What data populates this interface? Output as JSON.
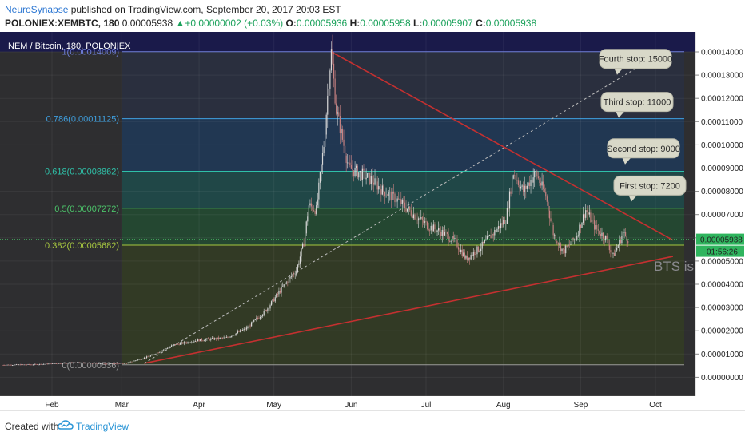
{
  "header": {
    "author": "NeuroSynapse",
    "published": "published on TradingView.com, September 20, 2017 20:03 EST",
    "symbol": "POLONIEX:XEMBTC, 180",
    "last": "0.00005938",
    "change": "+0.00000002 (+0.03%)",
    "o_label": "O:",
    "o_value": "0.00005936",
    "h_label": "H:",
    "h_value": "0.00005958",
    "l_label": "L:",
    "l_value": "0.00005907",
    "c_label": "C:",
    "c_value": "0.00005938"
  },
  "footer": {
    "created_with": "Created with",
    "brand": "TradingView",
    "brand_icon": "tradingview-cloud-icon"
  },
  "chart_data": {
    "type": "candlestick",
    "legend": "NEM / Bitcoin, 180, POLONIEX",
    "x_ticks": [
      "Feb",
      "Mar",
      "Apr",
      "May",
      "Jun",
      "Jul",
      "Aug",
      "Sep",
      "Oct"
    ],
    "y_ticks": [
      "0.00014000",
      "0.00013000",
      "0.00012000",
      "0.00011000",
      "0.00010000",
      "0.00009000",
      "0.00008000",
      "0.00007000",
      "0.00006000",
      "0.00005000",
      "0.00004000",
      "0.00003000",
      "0.00002000",
      "0.00001000",
      "0.00000000"
    ],
    "y_range": [
      -1e-06,
      0.000145
    ],
    "last_price_label": "0.00005938",
    "countdown": "01:56:26",
    "watermark": "BTS is",
    "fib_levels": [
      {
        "label": "1(0.00014009)",
        "value": 0.00014009,
        "color": "#6f7fd8"
      },
      {
        "label": "0.786(0.00011125)",
        "value": 0.00011125,
        "color": "#3fa0e0"
      },
      {
        "label": "0.618(0.00008862)",
        "value": 8.862e-05,
        "color": "#2fc0a8"
      },
      {
        "label": "0.5(0.00007272)",
        "value": 7.272e-05,
        "color": "#4cc36a"
      },
      {
        "label": "0.382(0.00005682)",
        "value": 5.682e-05,
        "color": "#a8c840"
      },
      {
        "label": "0(0.00000536)",
        "value": 5.36e-06,
        "color": "#9a9a9a"
      }
    ],
    "callouts": [
      {
        "text": "Fourth stop: 15000",
        "value": 0.000137
      },
      {
        "text": "Third stop: 11000",
        "value": 0.0001185
      },
      {
        "text": "Second stop: 9000",
        "value": 9.85e-05
      },
      {
        "text": "First stop: 7200",
        "value": 8.25e-05
      }
    ],
    "series": [
      {
        "date": "2017-01-12",
        "close": 5.3e-06
      },
      {
        "date": "2017-01-25",
        "close": 5.5e-06
      },
      {
        "date": "2017-02-10",
        "close": 6.3e-06
      },
      {
        "date": "2017-02-25",
        "close": 5.8e-06
      },
      {
        "date": "2017-03-03",
        "close": 6.1e-06
      },
      {
        "date": "2017-03-12",
        "close": 9e-06
      },
      {
        "date": "2017-03-22",
        "close": 1.4e-05
      },
      {
        "date": "2017-04-01",
        "close": 1.6e-05
      },
      {
        "date": "2017-04-12",
        "close": 1.7e-05
      },
      {
        "date": "2017-04-20",
        "close": 2.1e-05
      },
      {
        "date": "2017-04-28",
        "close": 2.9e-05
      },
      {
        "date": "2017-05-04",
        "close": 3.8e-05
      },
      {
        "date": "2017-05-10",
        "close": 4.6e-05
      },
      {
        "date": "2017-05-13",
        "close": 5.8e-05
      },
      {
        "date": "2017-05-15",
        "close": 7.4e-05
      },
      {
        "date": "2017-05-18",
        "close": 7.2e-05
      },
      {
        "date": "2017-05-21",
        "close": 0.0001
      },
      {
        "date": "2017-05-23",
        "close": 0.000128
      },
      {
        "date": "2017-05-24",
        "close": 0.00014
      },
      {
        "date": "2017-05-26",
        "close": 0.000115
      },
      {
        "date": "2017-05-28",
        "close": 0.000105
      },
      {
        "date": "2017-05-31",
        "close": 9e-05
      },
      {
        "date": "2017-06-04",
        "close": 8.8e-05
      },
      {
        "date": "2017-06-09",
        "close": 8.5e-05
      },
      {
        "date": "2017-06-14",
        "close": 8e-05
      },
      {
        "date": "2017-06-20",
        "close": 7.6e-05
      },
      {
        "date": "2017-06-26",
        "close": 7e-05
      },
      {
        "date": "2017-07-02",
        "close": 6.5e-05
      },
      {
        "date": "2017-07-08",
        "close": 6.2e-05
      },
      {
        "date": "2017-07-13",
        "close": 5.8e-05
      },
      {
        "date": "2017-07-17",
        "close": 5.1e-05
      },
      {
        "date": "2017-07-23",
        "close": 5.6e-05
      },
      {
        "date": "2017-07-28",
        "close": 6.2e-05
      },
      {
        "date": "2017-08-02",
        "close": 6.8e-05
      },
      {
        "date": "2017-08-05",
        "close": 8.8e-05
      },
      {
        "date": "2017-08-09",
        "close": 8e-05
      },
      {
        "date": "2017-08-14",
        "close": 8.8e-05
      },
      {
        "date": "2017-08-18",
        "close": 7.8e-05
      },
      {
        "date": "2017-08-21",
        "close": 6.2e-05
      },
      {
        "date": "2017-08-25",
        "close": 5.4e-05
      },
      {
        "date": "2017-08-30",
        "close": 6e-05
      },
      {
        "date": "2017-09-03",
        "close": 7.2e-05
      },
      {
        "date": "2017-09-07",
        "close": 6.4e-05
      },
      {
        "date": "2017-09-11",
        "close": 6e-05
      },
      {
        "date": "2017-09-14",
        "close": 5.2e-05
      },
      {
        "date": "2017-09-16",
        "close": 5.7e-05
      },
      {
        "date": "2017-09-18",
        "close": 6.2e-05
      },
      {
        "date": "2017-09-20",
        "close": 5.94e-05
      }
    ],
    "trendlines": [
      {
        "name": "upper",
        "color": "#c43030",
        "from": {
          "date": "2017-05-24",
          "value": 0.00014
        },
        "to": {
          "date": "2017-10-08",
          "value": 5.9e-05
        }
      },
      {
        "name": "lower",
        "color": "#c43030",
        "from": {
          "date": "2017-03-10",
          "value": 6e-06
        },
        "to": {
          "date": "2017-10-08",
          "value": 5.2e-05
        }
      },
      {
        "name": "projection",
        "color": "#bbbbbb",
        "from": {
          "date": "2017-03-10",
          "value": 6e-06
        },
        "to": {
          "date": "2017-09-28",
          "value": 0.000136
        }
      }
    ]
  }
}
